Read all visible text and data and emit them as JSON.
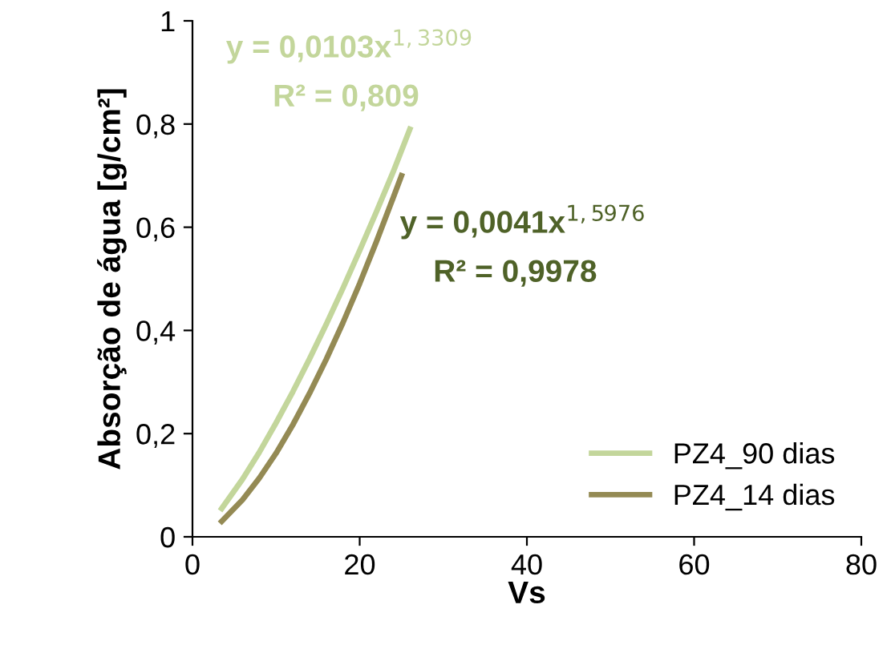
{
  "chart_data": {
    "type": "line",
    "xlabel": "Vs",
    "ylabel": "Absorção de água [g/cm²]",
    "xlim": [
      0,
      80
    ],
    "xticks": [
      0,
      20,
      40,
      60,
      80
    ],
    "ylim": [
      0,
      1
    ],
    "yticks": [
      0,
      {
        "value": 0.2,
        "label": "0,2"
      },
      {
        "value": 0.4,
        "label": "0,4"
      },
      {
        "value": 0.6,
        "label": "0,6"
      },
      {
        "value": 0.8,
        "label": "0,8"
      },
      1
    ],
    "grid": false,
    "legend": "bottom right",
    "marker": "none",
    "line_style": "solid",
    "series": [
      {
        "name": "PZ4_90 dias",
        "color": "#c3d69b",
        "x": [
          3.5,
          6,
          8,
          10,
          12,
          14,
          16,
          18,
          20,
          22,
          24,
          26
        ],
        "values": [
          0.055,
          0.112,
          0.164,
          0.221,
          0.281,
          0.345,
          0.412,
          0.482,
          0.555,
          0.63,
          0.707,
          0.79
        ]
      },
      {
        "name": "PZ4_14 dias",
        "color": "#948a54",
        "x": [
          3.5,
          6,
          8,
          10,
          12,
          14,
          16,
          18,
          20,
          22,
          24,
          25
        ],
        "values": [
          0.03,
          0.072,
          0.114,
          0.162,
          0.217,
          0.278,
          0.344,
          0.415,
          0.491,
          0.572,
          0.657,
          0.7
        ]
      }
    ],
    "annotations": [
      "y = 0,0103x$^{1,3309}$",
      "R² = 0,809",
      "y = 0,0041x$^{1,5976}$",
      "R² = 0,9978"
    ]
  }
}
